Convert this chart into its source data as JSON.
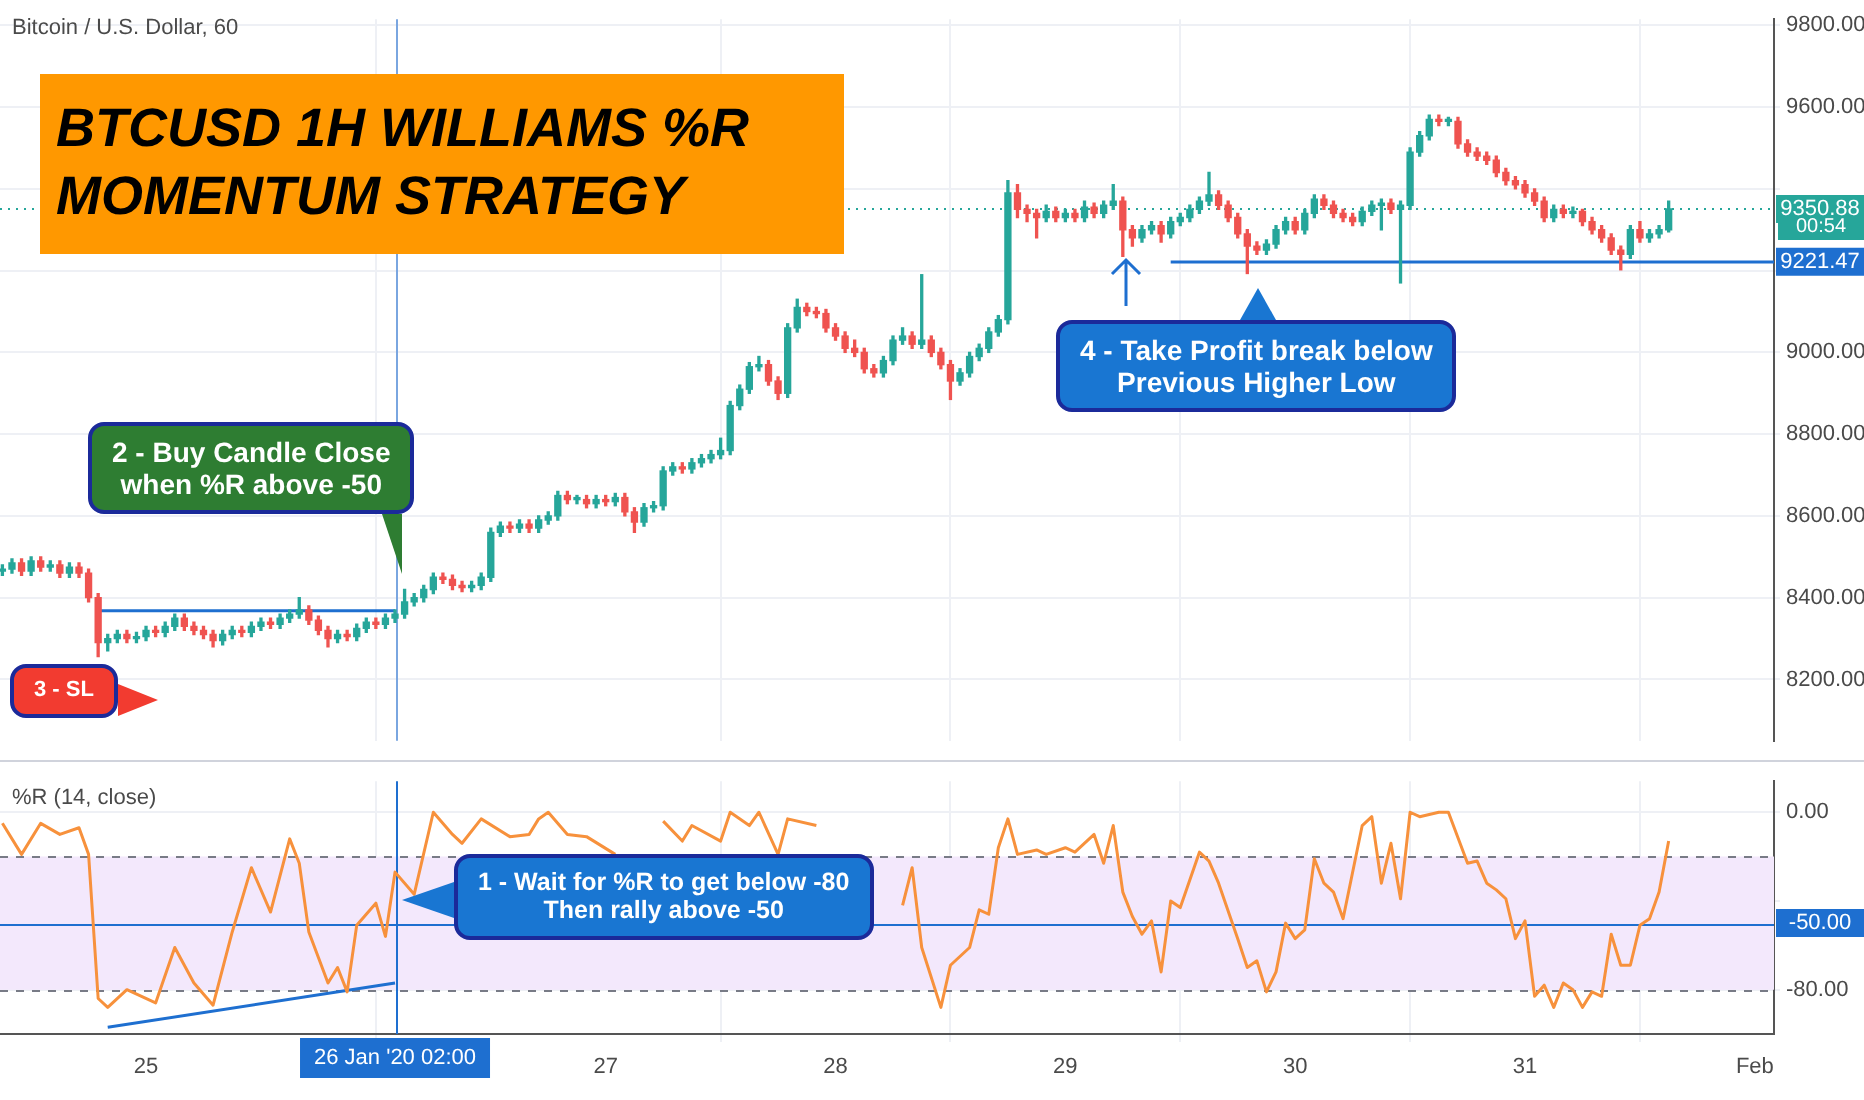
{
  "chart_data": [
    {
      "type": "candlestick",
      "title": "BTCUSD 1H WILLIAMS %R\nMOMENTUM STRATEGY",
      "subtitle": "Bitcoin / U.S. Dollar, 60",
      "x": [
        "2020-01-24T09:00",
        "2020-01-24T10:00",
        "2020-01-24T11:00",
        "2020-01-24T12:00",
        "2020-01-24T13:00",
        "2020-01-24T14:00",
        "2020-01-24T15:00",
        "2020-01-24T16:00",
        "2020-01-24T17:00",
        "2020-01-24T18:00",
        "2020-01-24T19:00",
        "2020-01-24T20:00",
        "2020-01-24T21:00",
        "2020-01-24T22:00",
        "2020-01-24T23:00",
        "2020-01-25T00:00",
        "2020-01-25T01:00",
        "2020-01-25T02:00",
        "2020-01-25T03:00",
        "2020-01-25T04:00",
        "2020-01-25T05:00",
        "2020-01-25T06:00",
        "2020-01-25T07:00",
        "2020-01-25T08:00",
        "2020-01-25T09:00",
        "2020-01-25T10:00",
        "2020-01-25T11:00",
        "2020-01-25T12:00",
        "2020-01-25T13:00",
        "2020-01-25T14:00",
        "2020-01-25T15:00",
        "2020-01-25T16:00",
        "2020-01-25T17:00",
        "2020-01-25T18:00",
        "2020-01-25T19:00",
        "2020-01-25T20:00",
        "2020-01-25T21:00",
        "2020-01-25T22:00",
        "2020-01-25T23:00",
        "2020-01-26T00:00",
        "2020-01-26T01:00",
        "2020-01-26T02:00",
        "2020-01-26T03:00",
        "2020-01-26T04:00",
        "2020-01-26T05:00",
        "2020-01-26T06:00",
        "2020-01-26T07:00",
        "2020-01-26T08:00",
        "2020-01-26T09:00",
        "2020-01-26T10:00",
        "2020-01-26T11:00",
        "2020-01-26T12:00",
        "2020-01-26T13:00",
        "2020-01-26T14:00",
        "2020-01-26T15:00",
        "2020-01-26T16:00",
        "2020-01-26T17:00",
        "2020-01-26T18:00",
        "2020-01-26T19:00",
        "2020-01-26T20:00",
        "2020-01-26T21:00",
        "2020-01-26T22:00",
        "2020-01-26T23:00",
        "2020-01-27T00:00",
        "2020-01-27T01:00",
        "2020-01-27T02:00",
        "2020-01-27T03:00",
        "2020-01-27T04:00",
        "2020-01-27T05:00",
        "2020-01-27T06:00",
        "2020-01-27T07:00",
        "2020-01-27T08:00",
        "2020-01-27T09:00",
        "2020-01-27T10:00",
        "2020-01-27T11:00",
        "2020-01-27T12:00",
        "2020-01-27T13:00",
        "2020-01-27T14:00",
        "2020-01-27T15:00",
        "2020-01-27T16:00",
        "2020-01-27T17:00",
        "2020-01-27T18:00",
        "2020-01-27T19:00",
        "2020-01-27T20:00",
        "2020-01-27T21:00",
        "2020-01-27T22:00",
        "2020-01-27T23:00",
        "2020-01-28T00:00",
        "2020-01-28T01:00",
        "2020-01-28T02:00",
        "2020-01-28T03:00",
        "2020-01-28T04:00",
        "2020-01-28T05:00",
        "2020-01-28T06:00",
        "2020-01-28T07:00",
        "2020-01-28T08:00",
        "2020-01-28T09:00",
        "2020-01-28T10:00",
        "2020-01-28T11:00",
        "2020-01-28T12:00",
        "2020-01-28T13:00",
        "2020-01-28T14:00",
        "2020-01-28T15:00",
        "2020-01-28T16:00",
        "2020-01-28T17:00",
        "2020-01-28T18:00",
        "2020-01-28T19:00",
        "2020-01-28T20:00",
        "2020-01-28T21:00",
        "2020-01-28T22:00",
        "2020-01-28T23:00",
        "2020-01-29T00:00",
        "2020-01-29T01:00",
        "2020-01-29T02:00",
        "2020-01-29T03:00",
        "2020-01-29T04:00",
        "2020-01-29T05:00",
        "2020-01-29T06:00",
        "2020-01-29T07:00",
        "2020-01-29T08:00",
        "2020-01-29T09:00",
        "2020-01-29T10:00",
        "2020-01-29T11:00",
        "2020-01-29T12:00",
        "2020-01-29T13:00",
        "2020-01-29T14:00",
        "2020-01-29T15:00",
        "2020-01-29T16:00",
        "2020-01-29T17:00",
        "2020-01-29T18:00",
        "2020-01-29T19:00",
        "2020-01-29T20:00",
        "2020-01-29T21:00",
        "2020-01-29T22:00",
        "2020-01-29T23:00",
        "2020-01-30T00:00",
        "2020-01-30T01:00",
        "2020-01-30T02:00",
        "2020-01-30T03:00",
        "2020-01-30T04:00",
        "2020-01-30T05:00",
        "2020-01-30T06:00",
        "2020-01-30T07:00",
        "2020-01-30T08:00",
        "2020-01-30T09:00",
        "2020-01-30T10:00",
        "2020-01-30T11:00",
        "2020-01-30T12:00",
        "2020-01-30T13:00",
        "2020-01-30T14:00",
        "2020-01-30T15:00",
        "2020-01-30T16:00",
        "2020-01-30T17:00",
        "2020-01-30T18:00",
        "2020-01-30T19:00",
        "2020-01-30T20:00",
        "2020-01-30T21:00",
        "2020-01-30T22:00",
        "2020-01-30T23:00",
        "2020-01-31T00:00",
        "2020-01-31T01:00",
        "2020-01-31T02:00",
        "2020-01-31T03:00",
        "2020-01-31T04:00",
        "2020-01-31T05:00",
        "2020-01-31T06:00",
        "2020-01-31T07:00",
        "2020-01-31T08:00",
        "2020-01-31T09:00",
        "2020-01-31T10:00",
        "2020-01-31T11:00",
        "2020-01-31T12:00",
        "2020-01-31T13:00",
        "2020-01-31T14:00",
        "2020-01-31T15:00"
      ],
      "ohlc": [
        [
          8465,
          8480,
          8455,
          8470
        ],
        [
          8470,
          8495,
          8460,
          8485
        ],
        [
          8485,
          8495,
          8455,
          8465
        ],
        [
          8465,
          8500,
          8455,
          8490
        ],
        [
          8490,
          8500,
          8465,
          8475
        ],
        [
          8475,
          8490,
          8465,
          8480
        ],
        [
          8480,
          8490,
          8450,
          8460
        ],
        [
          8460,
          8485,
          8450,
          8475
        ],
        [
          8475,
          8485,
          8450,
          8460
        ],
        [
          8460,
          8470,
          8390,
          8400
        ],
        [
          8400,
          8410,
          8256,
          8290
        ],
        [
          8290,
          8310,
          8270,
          8300
        ],
        [
          8300,
          8320,
          8290,
          8310
        ],
        [
          8310,
          8320,
          8290,
          8300
        ],
        [
          8300,
          8315,
          8290,
          8305
        ],
        [
          8305,
          8330,
          8295,
          8320
        ],
        [
          8320,
          8330,
          8305,
          8315
        ],
        [
          8315,
          8340,
          8305,
          8330
        ],
        [
          8330,
          8360,
          8320,
          8350
        ],
        [
          8350,
          8360,
          8320,
          8330
        ],
        [
          8330,
          8340,
          8310,
          8320
        ],
        [
          8320,
          8330,
          8300,
          8310
        ],
        [
          8310,
          8320,
          8280,
          8295
        ],
        [
          8295,
          8320,
          8285,
          8310
        ],
        [
          8310,
          8330,
          8300,
          8320
        ],
        [
          8320,
          8330,
          8305,
          8315
        ],
        [
          8315,
          8340,
          8305,
          8330
        ],
        [
          8330,
          8350,
          8320,
          8340
        ],
        [
          8340,
          8350,
          8325,
          8335
        ],
        [
          8335,
          8360,
          8325,
          8350
        ],
        [
          8350,
          8370,
          8340,
          8360
        ],
        [
          8360,
          8400,
          8350,
          8370
        ],
        [
          8370,
          8380,
          8335,
          8345
        ],
        [
          8345,
          8355,
          8310,
          8320
        ],
        [
          8320,
          8330,
          8280,
          8300
        ],
        [
          8300,
          8320,
          8290,
          8310
        ],
        [
          8310,
          8320,
          8295,
          8305
        ],
        [
          8305,
          8335,
          8295,
          8325
        ],
        [
          8325,
          8350,
          8315,
          8340
        ],
        [
          8340,
          8350,
          8325,
          8335
        ],
        [
          8335,
          8360,
          8325,
          8350
        ],
        [
          8350,
          8370,
          8340,
          8360
        ],
        [
          8360,
          8420,
          8350,
          8390
        ],
        [
          8390,
          8410,
          8380,
          8400
        ],
        [
          8400,
          8430,
          8390,
          8420
        ],
        [
          8420,
          8460,
          8410,
          8450
        ],
        [
          8450,
          8460,
          8435,
          8445
        ],
        [
          8445,
          8455,
          8420,
          8430
        ],
        [
          8430,
          8440,
          8415,
          8425
        ],
        [
          8425,
          8440,
          8415,
          8430
        ],
        [
          8430,
          8460,
          8420,
          8450
        ],
        [
          8450,
          8570,
          8440,
          8560
        ],
        [
          8560,
          8585,
          8550,
          8575
        ],
        [
          8575,
          8585,
          8560,
          8570
        ],
        [
          8570,
          8590,
          8560,
          8580
        ],
        [
          8580,
          8590,
          8560,
          8570
        ],
        [
          8570,
          8600,
          8560,
          8590
        ],
        [
          8590,
          8610,
          8580,
          8600
        ],
        [
          8600,
          8660,
          8590,
          8650
        ],
        [
          8650,
          8660,
          8630,
          8640
        ],
        [
          8640,
          8650,
          8630,
          8640
        ],
        [
          8640,
          8650,
          8620,
          8630
        ],
        [
          8630,
          8650,
          8620,
          8640
        ],
        [
          8640,
          8650,
          8625,
          8635
        ],
        [
          8635,
          8655,
          8625,
          8645
        ],
        [
          8645,
          8655,
          8600,
          8610
        ],
        [
          8610,
          8620,
          8560,
          8585
        ],
        [
          8585,
          8630,
          8575,
          8620
        ],
        [
          8620,
          8635,
          8610,
          8625
        ],
        [
          8625,
          8720,
          8615,
          8710
        ],
        [
          8710,
          8730,
          8700,
          8720
        ],
        [
          8720,
          8730,
          8705,
          8715
        ],
        [
          8715,
          8740,
          8705,
          8730
        ],
        [
          8730,
          8750,
          8720,
          8740
        ],
        [
          8740,
          8760,
          8730,
          8750
        ],
        [
          8750,
          8790,
          8740,
          8760
        ],
        [
          8760,
          8880,
          8750,
          8870
        ],
        [
          8870,
          8920,
          8860,
          8910
        ],
        [
          8910,
          8975,
          8900,
          8965
        ],
        [
          8965,
          8990,
          8955,
          8970
        ],
        [
          8970,
          8980,
          8920,
          8930
        ],
        [
          8930,
          8940,
          8885,
          8900
        ],
        [
          8900,
          9070,
          8890,
          9060
        ],
        [
          9060,
          9130,
          9050,
          9110
        ],
        [
          9110,
          9120,
          9090,
          9100
        ],
        [
          9100,
          9110,
          9085,
          9095
        ],
        [
          9095,
          9105,
          9050,
          9060
        ],
        [
          9060,
          9070,
          9030,
          9040
        ],
        [
          9040,
          9050,
          9000,
          9010
        ],
        [
          9010,
          9030,
          8990,
          9000
        ],
        [
          9000,
          9010,
          8950,
          8960
        ],
        [
          8960,
          8970,
          8940,
          8950
        ],
        [
          8950,
          8990,
          8940,
          8980
        ],
        [
          8980,
          9040,
          8970,
          9030
        ],
        [
          9030,
          9060,
          9020,
          9040
        ],
        [
          9040,
          9050,
          9010,
          9020
        ],
        [
          9020,
          9190,
          9010,
          9030
        ],
        [
          9030,
          9040,
          8990,
          9000
        ],
        [
          9000,
          9010,
          8960,
          8970
        ],
        [
          8970,
          8980,
          8885,
          8930
        ],
        [
          8930,
          8960,
          8920,
          8950
        ],
        [
          8950,
          9000,
          8940,
          8990
        ],
        [
          8990,
          9020,
          8980,
          9010
        ],
        [
          9010,
          9060,
          9000,
          9050
        ],
        [
          9050,
          9090,
          9040,
          9080
        ],
        [
          9080,
          9420,
          9070,
          9390
        ],
        [
          9390,
          9410,
          9330,
          9350
        ],
        [
          9350,
          9360,
          9320,
          9340
        ],
        [
          9340,
          9350,
          9280,
          9330
        ],
        [
          9330,
          9360,
          9320,
          9345
        ],
        [
          9345,
          9355,
          9320,
          9330
        ],
        [
          9330,
          9350,
          9320,
          9340
        ],
        [
          9340,
          9350,
          9320,
          9330
        ],
        [
          9330,
          9370,
          9320,
          9355
        ],
        [
          9355,
          9365,
          9330,
          9340
        ],
        [
          9340,
          9370,
          9330,
          9360
        ],
        [
          9360,
          9410,
          9350,
          9370
        ],
        [
          9370,
          9380,
          9235,
          9300
        ],
        [
          9300,
          9310,
          9260,
          9280
        ],
        [
          9280,
          9310,
          9270,
          9300
        ],
        [
          9300,
          9320,
          9290,
          9310
        ],
        [
          9310,
          9320,
          9270,
          9290
        ],
        [
          9290,
          9330,
          9280,
          9320
        ],
        [
          9320,
          9340,
          9310,
          9330
        ],
        [
          9330,
          9360,
          9320,
          9350
        ],
        [
          9350,
          9380,
          9340,
          9370
        ],
        [
          9370,
          9440,
          9360,
          9385
        ],
        [
          9385,
          9395,
          9350,
          9360
        ],
        [
          9360,
          9370,
          9320,
          9330
        ],
        [
          9330,
          9340,
          9280,
          9290
        ],
        [
          9290,
          9300,
          9193,
          9260
        ],
        [
          9260,
          9270,
          9240,
          9250
        ],
        [
          9250,
          9275,
          9240,
          9265
        ],
        [
          9265,
          9310,
          9255,
          9300
        ],
        [
          9300,
          9330,
          9290,
          9320
        ],
        [
          9320,
          9330,
          9290,
          9300
        ],
        [
          9300,
          9350,
          9290,
          9340
        ],
        [
          9340,
          9385,
          9330,
          9375
        ],
        [
          9375,
          9385,
          9350,
          9360
        ],
        [
          9360,
          9370,
          9330,
          9340
        ],
        [
          9340,
          9350,
          9320,
          9330
        ],
        [
          9330,
          9340,
          9310,
          9320
        ],
        [
          9320,
          9355,
          9310,
          9345
        ],
        [
          9345,
          9370,
          9335,
          9360
        ],
        [
          9360,
          9375,
          9300,
          9365
        ],
        [
          9365,
          9375,
          9340,
          9350
        ],
        [
          9350,
          9370,
          9170,
          9360
        ],
        [
          9360,
          9500,
          9350,
          9490
        ],
        [
          9490,
          9540,
          9480,
          9530
        ],
        [
          9530,
          9580,
          9520,
          9570
        ],
        [
          9570,
          9580,
          9555,
          9565
        ],
        [
          9565,
          9575,
          9555,
          9565
        ],
        [
          9565,
          9575,
          9500,
          9510
        ],
        [
          9510,
          9520,
          9480,
          9490
        ],
        [
          9490,
          9500,
          9470,
          9480
        ],
        [
          9480,
          9490,
          9460,
          9470
        ],
        [
          9470,
          9480,
          9430,
          9440
        ],
        [
          9440,
          9450,
          9410,
          9420
        ],
        [
          9420,
          9430,
          9400,
          9410
        ],
        [
          9410,
          9420,
          9380,
          9390
        ],
        [
          9390,
          9400,
          9360,
          9370
        ],
        [
          9370,
          9380,
          9320,
          9330
        ],
        [
          9330,
          9360,
          9320,
          9350
        ],
        [
          9350,
          9360,
          9330,
          9340
        ],
        [
          9340,
          9355,
          9330,
          9345
        ],
        [
          9345,
          9350,
          9310,
          9320
        ],
        [
          9320,
          9330,
          9290,
          9300
        ],
        [
          9300,
          9310,
          9270,
          9280
        ],
        [
          9280,
          9290,
          9240,
          9250
        ],
        [
          9250,
          9260,
          9202,
          9240
        ],
        [
          9240,
          9310,
          9230,
          9300
        ],
        [
          9300,
          9320,
          9270,
          9280
        ],
        [
          9280,
          9300,
          9270,
          9290
        ],
        [
          9290,
          9310,
          9280,
          9300
        ],
        [
          9300,
          9370,
          9295,
          9350.88
        ]
      ],
      "series": [
        {
          "type": "line",
          "x": [
            "2020-01-24T19:00",
            "2020-01-26T02:00"
          ],
          "values": [
            8368,
            8368
          ],
          "color": "#1e6fd0"
        },
        {
          "type": "line",
          "x": [
            "2020-01-29T11:00",
            "2020-02-01T02:00"
          ],
          "values": [
            9221,
            9221
          ],
          "color": "#1e6fd0"
        }
      ],
      "xlim": [
        "2020-01-24T08:45",
        "2020-02-01T02:00"
      ],
      "xticks": [
        {
          "value": "2020-01-25",
          "label": null
        },
        {
          "value": "2020-01-27",
          "label": null
        },
        {
          "value": "2020-01-28",
          "label": null
        },
        {
          "value": "2020-01-29",
          "label": null
        },
        {
          "value": "2020-01-30",
          "label": null
        },
        {
          "value": "2020-01-31",
          "label": null
        },
        {
          "value": "2020-02-01",
          "label": null
        }
      ],
      "ylim": [
        8050,
        9815
      ],
      "yticks": [
        {
          "value": 8200,
          "label": "8200.00"
        },
        {
          "value": 8400,
          "label": "8400.00"
        },
        {
          "value": 8600,
          "label": "8600.00"
        },
        {
          "value": 8800,
          "label": "8800.00"
        },
        {
          "value": 9000,
          "label": "9000.00"
        },
        {
          "value": 9200,
          "label": null
        },
        {
          "value": 9400,
          "label": null
        },
        {
          "value": 9600,
          "label": "9600.00"
        },
        {
          "value": 9800,
          "label": "9800.00"
        }
      ],
      "tick_labels": "y",
      "grid": true,
      "ref_lines": [
        {
          "axis": "y",
          "value": 9350.88,
          "label": "9350.88",
          "color": "#26a69a",
          "line_style": "dotted"
        },
        {
          "axis": "x",
          "value": "2020-01-26T02:00",
          "color": "#7aa6e0"
        }
      ],
      "annotations": [
        "2 - Buy Candle Close\nwhen %R above -50",
        "3 - SL",
        "4 - Take Profit break below\nPrevious Higher Low",
        "00:54",
        {
          "text": "9221.47",
          "y": 9221.47
        }
      ]
    },
    {
      "type": "line",
      "title": "%R (14, close)",
      "series": [
        {
          "type": "line",
          "color": "#f7913c",
          "x": [
            "2020-01-24T09:00",
            "2020-01-24T11:00",
            "2020-01-24T13:00",
            "2020-01-24T15:00",
            "2020-01-24T17:00",
            "2020-01-24T18:00",
            "2020-01-24T19:00",
            "2020-01-24T20:00",
            "2020-01-24T22:00",
            "2020-01-25T01:00",
            "2020-01-25T03:00",
            "2020-01-25T05:00",
            "2020-01-25T07:00",
            "2020-01-25T09:00",
            "2020-01-25T11:00",
            "2020-01-25T13:00",
            "2020-01-25T15:00",
            "2020-01-25T16:00",
            "2020-01-25T17:00",
            "2020-01-25T19:00",
            "2020-01-25T20:00",
            "2020-01-25T21:00",
            "2020-01-25T22:00",
            "2020-01-26T00:00",
            "2020-01-26T01:00",
            "2020-01-26T02:00",
            "2020-01-26T04:00",
            "2020-01-26T06:00",
            "2020-01-26T08:00",
            "2020-01-26T09:00",
            "2020-01-26T11:00",
            "2020-01-26T14:00",
            "2020-01-26T16:00",
            "2020-01-26T17:00",
            "2020-01-26T18:00",
            "2020-01-26T20:00",
            "2020-01-26T22:00",
            "2020-01-27T01:00",
            "2020-01-27T03:00",
            "2020-01-27T06:00",
            "2020-01-27T08:00",
            "2020-01-27T09:00",
            "2020-01-27T12:00",
            "2020-01-27T13:00",
            "2020-01-27T15:00",
            "2020-01-27T16:00",
            "2020-01-27T18:00",
            "2020-01-27T19:00",
            "2020-01-27T22:00",
            "2020-01-27T23:00",
            "2020-01-28T03:00",
            "2020-01-28T07:00",
            "2020-01-28T08:00",
            "2020-01-28T09:00",
            "2020-01-28T11:00",
            "2020-01-28T12:00",
            "2020-01-28T14:00",
            "2020-01-28T15:00",
            "2020-01-28T16:00",
            "2020-01-28T17:00",
            "2020-01-28T18:00",
            "2020-01-28T19:00",
            "2020-01-28T21:00",
            "2020-01-28T22:00",
            "2020-01-29T00:00",
            "2020-01-29T01:00",
            "2020-01-29T03:00",
            "2020-01-29T04:00",
            "2020-01-29T05:00",
            "2020-01-29T06:00",
            "2020-01-29T07:00",
            "2020-01-29T08:00",
            "2020-01-29T09:00",
            "2020-01-29T10:00",
            "2020-01-29T11:00",
            "2020-01-29T12:00",
            "2020-01-29T14:00",
            "2020-01-29T15:00",
            "2020-01-29T16:00",
            "2020-01-29T18:00",
            "2020-01-29T19:00",
            "2020-01-29T20:00",
            "2020-01-29T21:00",
            "2020-01-29T22:00",
            "2020-01-29T23:00",
            "2020-01-30T00:00",
            "2020-01-30T01:00",
            "2020-01-30T02:00",
            "2020-01-30T03:00",
            "2020-01-30T04:00",
            "2020-01-30T05:00",
            "2020-01-30T07:00",
            "2020-01-30T08:00",
            "2020-01-30T09:00",
            "2020-01-30T10:00",
            "2020-01-30T11:00",
            "2020-01-30T12:00",
            "2020-01-30T13:00",
            "2020-01-30T15:00",
            "2020-01-30T16:00",
            "2020-01-30T18:00",
            "2020-01-30T19:00",
            "2020-01-30T20:00",
            "2020-01-30T21:00",
            "2020-01-30T22:00",
            "2020-01-30T23:00",
            "2020-01-31T00:00",
            "2020-01-31T01:00",
            "2020-01-31T02:00",
            "2020-01-31T03:00",
            "2020-01-31T04:00",
            "2020-01-31T05:00",
            "2020-01-31T06:00",
            "2020-01-31T07:00",
            "2020-01-31T08:00",
            "2020-01-31T09:00",
            "2020-01-31T10:00",
            "2020-01-31T11:00",
            "2020-01-31T12:00",
            "2020-01-31T13:00",
            "2020-01-31T14:00",
            "2020-01-31T15:00"
          ],
          "values": [
            -5,
            -19,
            -5,
            -10,
            -7,
            -19,
            -84,
            -88,
            -80,
            -86,
            -61,
            -77,
            -87,
            -54,
            -25,
            -45,
            -12,
            -23,
            -54,
            -77,
            -70,
            -81,
            -51,
            -41,
            -56,
            -27,
            -37,
            0,
            -10,
            -14,
            -3,
            -11,
            -10,
            -3,
            0,
            -10,
            -11,
            -19,
            null,
            -4,
            -13,
            -6,
            -13,
            0,
            -6,
            0,
            -19,
            -3,
            -6,
            null,
            null,
            -42,
            -25,
            -61,
            -88,
            -69,
            -61,
            -44,
            -46,
            -16,
            -3,
            -19,
            -17,
            -19,
            -16,
            -18,
            -10,
            -23,
            -6,
            -36,
            -47,
            -55,
            -49,
            -72,
            -40,
            -43,
            -18,
            -22,
            -32,
            -57,
            -70,
            -67,
            -81,
            -72,
            -50,
            -57,
            -53,
            -21,
            -32,
            -36,
            -48,
            -6,
            -2,
            -32,
            -14,
            -39,
            0,
            -2,
            0,
            0,
            -23,
            -22,
            -32,
            -35,
            -39,
            -57,
            -49,
            -83,
            -78,
            -88,
            -77,
            -80,
            -88,
            -81,
            -83,
            -55,
            -69,
            -69,
            -51,
            -48,
            -36,
            -13
          ]
        },
        {
          "type": "line",
          "color": "#1e6fd0",
          "x": [
            "2020-01-24T20:00",
            "2020-01-26T02:00"
          ],
          "values": [
            -97,
            -77
          ]
        }
      ],
      "xlim": [
        "2020-01-24T08:45",
        "2020-02-01T02:00"
      ],
      "xticks": [
        {
          "value": "2020-01-25",
          "label": "25"
        },
        {
          "value": "2020-01-27",
          "label": "27"
        },
        {
          "value": "2020-01-28",
          "label": "28"
        },
        {
          "value": "2020-01-29",
          "label": "29"
        },
        {
          "value": "2020-01-30",
          "label": "30"
        },
        {
          "value": "2020-01-31",
          "label": "31"
        },
        {
          "value": "2020-02-01",
          "label": "Feb"
        }
      ],
      "ylim": [
        -100,
        14
      ],
      "yticks": [
        {
          "value": 0,
          "label": "0.00"
        },
        {
          "value": -40,
          "label": null
        },
        {
          "value": -80,
          "label": "-80.00"
        }
      ],
      "grid": true,
      "bands": [
        {
          "axis": "y",
          "from": -80,
          "to": -20,
          "color": "#f3e8fc"
        }
      ],
      "ref_lines": [
        {
          "axis": "y",
          "value": -20,
          "color": "#787b86",
          "line_style": "dashed"
        },
        {
          "axis": "y",
          "value": -80,
          "color": "#787b86",
          "line_style": "dashed"
        },
        {
          "axis": "y",
          "value": -50,
          "label": "-50.00",
          "color": "#1e6fd0"
        },
        {
          "axis": "x",
          "value": "2020-01-26T02:00",
          "label": "26 Jan '20 02:00",
          "color": "#1e6fd0"
        }
      ],
      "annotations": [
        "1 - Wait for %R to get below -80\nThen rally above -50"
      ]
    }
  ]
}
